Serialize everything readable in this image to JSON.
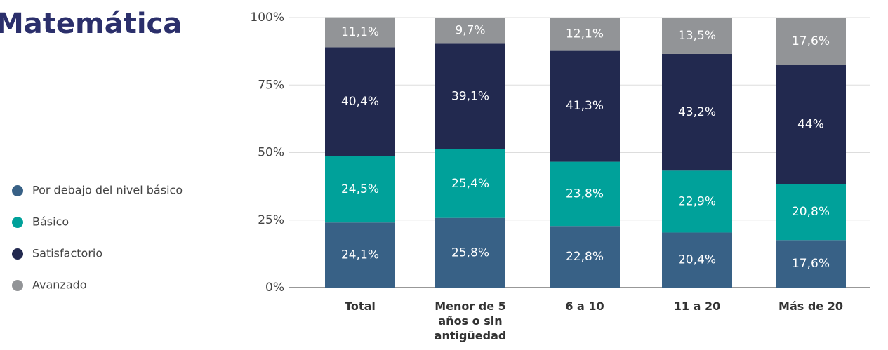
{
  "chart_data": {
    "type": "stacked_bar",
    "title": "Matemática",
    "categories": [
      "Total",
      "Menor de 5 años o sin antigüedad",
      "6 a 10",
      "11 a 20",
      "Más de 20"
    ],
    "series": [
      {
        "name": "Por debajo del nivel básico",
        "color": "#386186",
        "values": [
          24.1,
          25.8,
          22.8,
          20.4,
          17.6
        ],
        "value_labels": [
          "24,1%",
          "25,8%",
          "22,8%",
          "20,4%",
          "17,6%"
        ]
      },
      {
        "name": "Básico",
        "color": "#00a19a",
        "values": [
          24.5,
          25.4,
          23.8,
          22.9,
          20.8
        ],
        "value_labels": [
          "24,5%",
          "25,4%",
          "23,8%",
          "22,9%",
          "20,8%"
        ]
      },
      {
        "name": "Satisfactorio",
        "color": "#22294f",
        "values": [
          40.4,
          39.1,
          41.3,
          43.2,
          44
        ],
        "value_labels": [
          "40,4%",
          "39,1%",
          "41,3%",
          "43,2%",
          "44%"
        ]
      },
      {
        "name": "Avanzado",
        "color": "#929497",
        "values": [
          11.1,
          9.7,
          12.1,
          13.5,
          17.6
        ],
        "value_labels": [
          "11,1%",
          "9,7%",
          "12,1%",
          "13,5%",
          "17,6%"
        ]
      }
    ],
    "ylim": [
      0,
      100
    ],
    "yticks": [
      {
        "value": 0,
        "label": "0%"
      },
      {
        "value": 25,
        "label": "25%"
      },
      {
        "value": 50,
        "label": "50%"
      },
      {
        "value": 75,
        "label": "75%"
      },
      {
        "value": 100,
        "label": "100%"
      }
    ],
    "grid": true,
    "legend": "left"
  }
}
